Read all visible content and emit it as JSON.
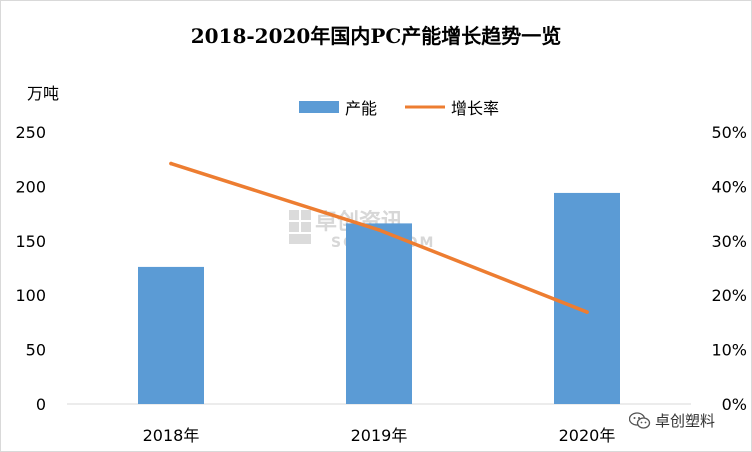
{
  "colors": {
    "bar": "#5b9bd5",
    "line": "#ed7d31",
    "axis": "#d9d9d9"
  },
  "chart_data": {
    "type": "bar",
    "title": "2018-2020年国内PC产能增长趋势一览",
    "categories": [
      "2018年",
      "2019年",
      "2020年"
    ],
    "ylabel": "万吨",
    "ylim": [
      0,
      250
    ],
    "y_ticks": [
      "0",
      "50",
      "100",
      "150",
      "200",
      "250"
    ],
    "y2lim": [
      0,
      50
    ],
    "y2_ticks": [
      "0%",
      "10%",
      "20%",
      "30%",
      "40%",
      "50%"
    ],
    "legend_position": "top-center",
    "series": [
      {
        "name": "产能",
        "type": "bar",
        "axis": "left",
        "values": [
          126,
          166,
          194
        ]
      },
      {
        "name": "增长率",
        "type": "line",
        "axis": "right",
        "values": [
          44.2,
          32.0,
          16.9
        ]
      }
    ]
  },
  "watermark": {
    "line1": "卓创资讯",
    "line2": "SCI99.COM"
  },
  "brand": {
    "label": "卓创塑料",
    "icon": "wechat-icon"
  }
}
